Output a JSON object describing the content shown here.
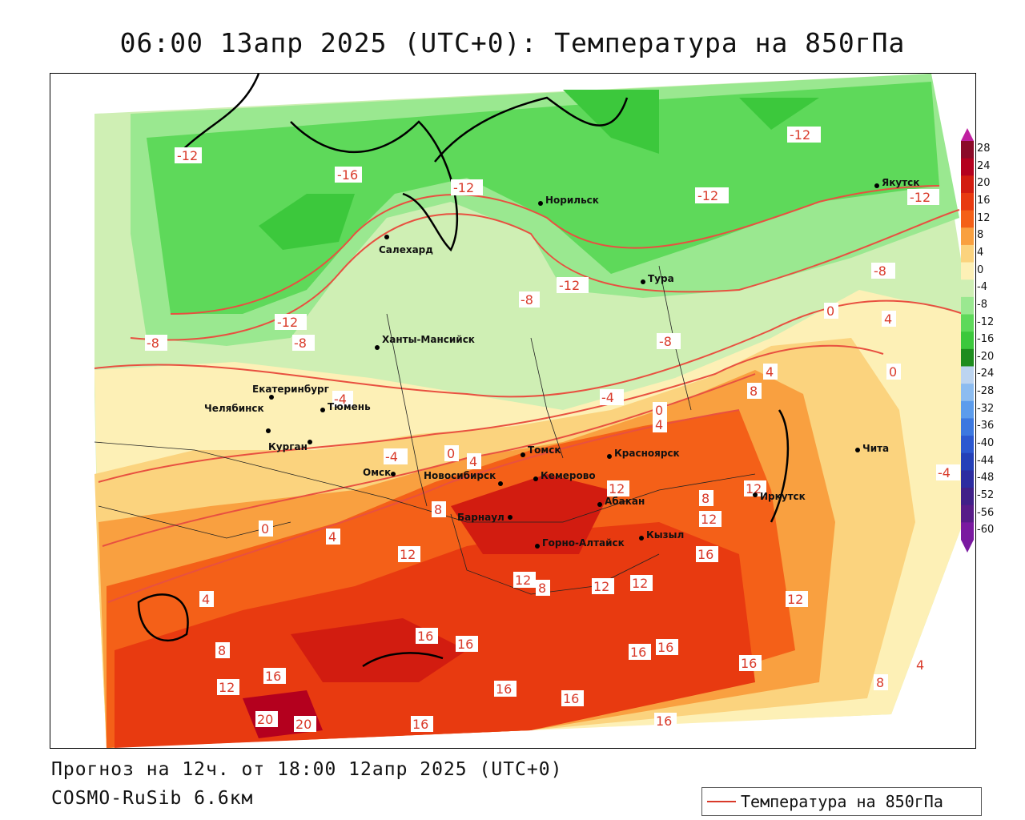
{
  "title": "06:00 13апр 2025 (UTC+0): Температура на 850гПа",
  "footer": {
    "forecast": "Прогноз на 12ч. от 18:00 12апр 2025 (UTC+0)",
    "model": "COSMO-RuSib 6.6км"
  },
  "legend": {
    "label": "Температура на 850гПа",
    "color": "#d93a2a"
  },
  "colorbar": {
    "labels": [
      "28",
      "24",
      "20",
      "16",
      "12",
      "8",
      "4",
      "0",
      "-4",
      "-8",
      "-12",
      "-16",
      "-20",
      "-24",
      "-28",
      "-32",
      "-36",
      "-40",
      "-44",
      "-48",
      "-52",
      "-56",
      "-60"
    ],
    "colors": [
      "#8b0a28",
      "#b4001e",
      "#d21c10",
      "#e83a10",
      "#f46018",
      "#f9a040",
      "#fbd37e",
      "#fdf0b6",
      "#cfefb4",
      "#9ae890",
      "#5ed95a",
      "#3cc83c",
      "#1e8c1e",
      "#bcd4f0",
      "#8cbcf0",
      "#5c9cec",
      "#3c78e0",
      "#2c58d0",
      "#2440b8",
      "#2c2ca0",
      "#402088",
      "#581c88",
      "#7a1aa0"
    ]
  },
  "cities": [
    {
      "name": "Норильск"
    },
    {
      "name": "Якутск"
    },
    {
      "name": "Салехард"
    },
    {
      "name": "Тура"
    },
    {
      "name": "Ханты-Мансийск"
    },
    {
      "name": "Екатеринбург"
    },
    {
      "name": "Тюмень"
    },
    {
      "name": "Челябинск"
    },
    {
      "name": "Курган"
    },
    {
      "name": "Омск"
    },
    {
      "name": "Новосибирск"
    },
    {
      "name": "Томск"
    },
    {
      "name": "Кемерово"
    },
    {
      "name": "Красноярск"
    },
    {
      "name": "Барнаул"
    },
    {
      "name": "Абакан"
    },
    {
      "name": "Горно-Алтайск"
    },
    {
      "name": "Кызыл"
    },
    {
      "name": "Иркутск"
    },
    {
      "name": "Чита"
    }
  ],
  "contour_labels": [
    "-12",
    "-16",
    "-12",
    "-12",
    "-12",
    "-12",
    "-8",
    "-12",
    "-8",
    "-12",
    "-8",
    "-8",
    "-8",
    "-4",
    "-4",
    "0",
    "4",
    "-4",
    "0",
    "4",
    "0",
    "4",
    "-4",
    "0",
    "4",
    "8",
    "8",
    "12",
    "12",
    "8",
    "12",
    "4",
    "0",
    "12",
    "16",
    "12",
    "8",
    "12",
    "12",
    "16",
    "16",
    "16",
    "16",
    "4",
    "8",
    "16",
    "12",
    "16",
    "16",
    "20",
    "20",
    "16",
    "16",
    "16",
    "12",
    "4",
    "8"
  ]
}
